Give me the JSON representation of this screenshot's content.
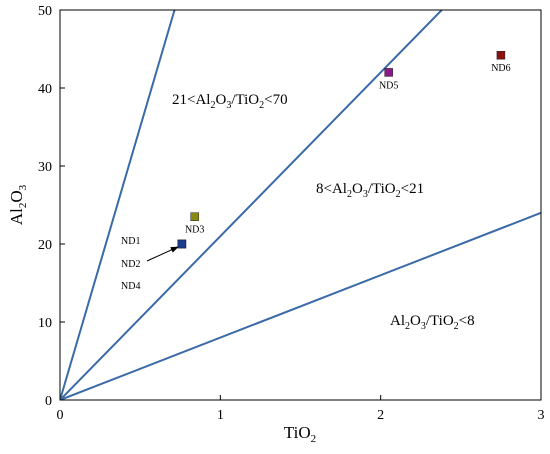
{
  "chart_data": {
    "type": "scatter",
    "xlabel": "TiO2",
    "ylabel": "Al2O3",
    "xlim": [
      0,
      3
    ],
    "ylim": [
      0,
      50
    ],
    "xticks": [
      "0",
      "1",
      "2",
      "3"
    ],
    "yticks": [
      "0",
      "10",
      "20",
      "30",
      "40",
      "50"
    ],
    "points": [
      {
        "label": "ND1",
        "x": 0.76,
        "y": 20.0,
        "color": "#1a3d8f"
      },
      {
        "label": "ND2",
        "x": 0.76,
        "y": 20.0,
        "color": "#1f8a3a"
      },
      {
        "label": "ND3",
        "x": 0.84,
        "y": 23.5,
        "color": "#8a8a12"
      },
      {
        "label": "ND4",
        "x": 0.76,
        "y": 20.0,
        "color": "#1a3d8f"
      },
      {
        "label": "ND5",
        "x": 2.05,
        "y": 42.0,
        "color": "#8a1a8a"
      },
      {
        "label": "ND6",
        "x": 2.75,
        "y": 44.2,
        "color": "#8b1010"
      }
    ],
    "ratio_lines": [
      {
        "ratio": 70,
        "color": "#3b6aa8"
      },
      {
        "ratio": 21,
        "color": "#3b6aa8"
      },
      {
        "ratio": 8,
        "color": "#3b6aa8"
      }
    ],
    "regions": [
      {
        "prefix": "21<",
        "suffix": "<70"
      },
      {
        "prefix": "8<",
        "suffix": "<21"
      },
      {
        "prefix": "",
        "suffix": "<8"
      }
    ],
    "grid": false,
    "legend": "none"
  }
}
